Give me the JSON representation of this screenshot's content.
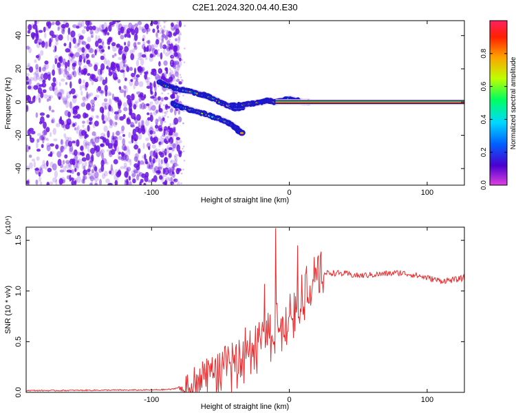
{
  "title": "C2E1.2024.320.04.40.E30",
  "colors": {
    "snr_line": "#e8282a",
    "scatter": "#6a14e0",
    "axis": "#000000"
  },
  "chart_data": [
    {
      "type": "heatmap",
      "xlabel": "Height of straight line (km)",
      "ylabel": "Frequency (Hz)",
      "xlim": [
        -191,
        127
      ],
      "ylim": [
        -50,
        49
      ],
      "xticks": [
        -100,
        0,
        100
      ],
      "yticks": [
        -40,
        -20,
        0,
        20,
        40
      ],
      "colorbar": {
        "label": "Normalized spectral amplitude",
        "range": [
          0,
          1
        ],
        "ticks": [
          0.0,
          0.2,
          0.4,
          0.6,
          0.8
        ],
        "colormap": [
          "#e040e0",
          "#4a00d0",
          "#0060ff",
          "#00d8ff",
          "#00ff60",
          "#c0ff00",
          "#ffa000",
          "#ff2000",
          "#ff2060"
        ]
      },
      "noise_region": {
        "x": [
          -191,
          -79
        ],
        "y": [
          -50,
          49
        ]
      },
      "tracks": [
        {
          "x": [
            -94,
            -90,
            -82,
            -76,
            -70,
            -62,
            -55,
            -48,
            -42,
            -38,
            -33
          ],
          "y": [
            12,
            10,
            8,
            7,
            6,
            4,
            2,
            -1,
            -3,
            -4,
            -3
          ]
        },
        {
          "x": [
            -85,
            -78,
            -70,
            -62,
            -55,
            -48,
            -43,
            -38,
            -34
          ],
          "y": [
            -1,
            -3,
            -5,
            -7,
            -9,
            -11,
            -13,
            -16,
            -19
          ]
        },
        {
          "x": [
            -42,
            -35,
            -28,
            -20,
            -15,
            -10,
            -5,
            0,
            5,
            10,
            15
          ],
          "y": [
            -2,
            -2,
            -1,
            0,
            1,
            0,
            1,
            2,
            1,
            0,
            0
          ]
        }
      ],
      "carrier": {
        "x": [
          -10,
          127
        ],
        "y": 0
      }
    },
    {
      "type": "line",
      "xlabel": "Height of straight line (km)",
      "ylabel": "SNR (10 * v/v)",
      "y_multiplier": "(x10⁴)",
      "xlim": [
        -191,
        127
      ],
      "ylim": [
        0,
        1.63
      ],
      "xticks": [
        -100,
        0,
        100
      ],
      "yticks": [
        0.0,
        0.5,
        1.0,
        1.5
      ],
      "series": [
        {
          "x": [
            -191,
            -170,
            -150,
            -130,
            -110,
            -95,
            -85,
            -78,
            -70,
            -62,
            -55,
            -48,
            -42,
            -36,
            -30,
            -25,
            -20,
            -15,
            -10,
            -5,
            0,
            5,
            10,
            15,
            20,
            25,
            30,
            40,
            50,
            60,
            70,
            80,
            90,
            100,
            110,
            120,
            127
          ],
          "y": [
            0.018,
            0.018,
            0.02,
            0.022,
            0.022,
            0.025,
            0.03,
            0.06,
            0.14,
            0.2,
            0.26,
            0.32,
            0.34,
            0.4,
            0.45,
            0.52,
            0.56,
            0.62,
            0.7,
            0.74,
            0.8,
            0.88,
            1.05,
            1.1,
            1.15,
            1.17,
            1.18,
            1.17,
            1.15,
            1.16,
            1.17,
            1.18,
            1.16,
            1.13,
            1.1,
            1.11,
            1.13
          ]
        }
      ],
      "spikes": [
        {
          "x": -10,
          "y": 1.62
        },
        {
          "x": 6,
          "y": 1.45
        },
        {
          "x": -18,
          "y": 1.07
        },
        {
          "x": -32,
          "y": 0.64
        }
      ]
    }
  ]
}
